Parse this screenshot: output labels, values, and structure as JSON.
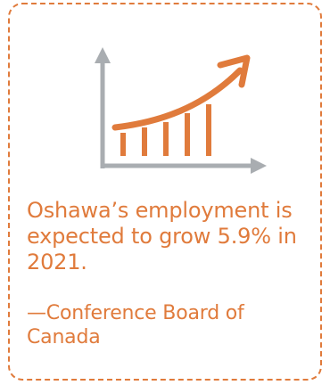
{
  "stat": {
    "line1": "Oshawa’s employment is",
    "line2": "expected to grow 5.9% in",
    "line3": "2021."
  },
  "source": {
    "line1": "—Conference Board of",
    "line2": "Canada"
  },
  "icon": {
    "name": "growth-chart-icon",
    "accent_color": "#e07b3c",
    "axis_color": "#a9adb1"
  }
}
